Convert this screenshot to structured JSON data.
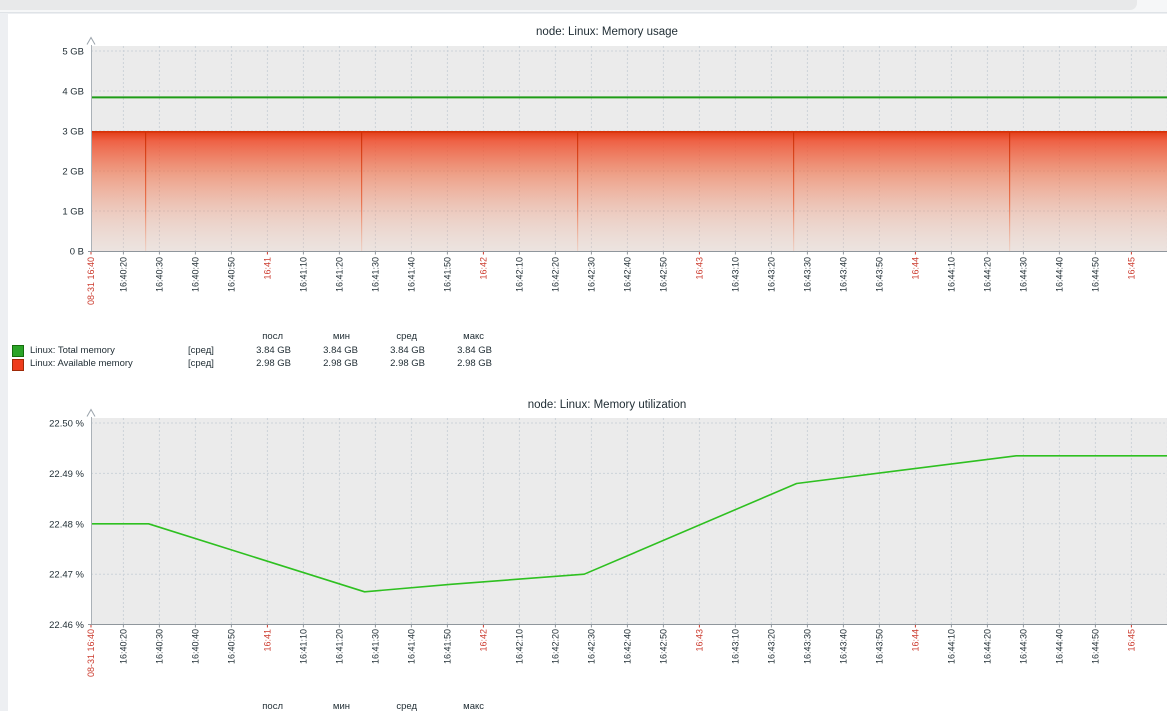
{
  "page": {
    "browser_chrome": {
      "strip_color": "#f6f7f8",
      "tab_color": "#e8e9ea",
      "divider_color": "#dfe3e7",
      "page_bg": "#edeff2",
      "panel_bg": "#ffffff",
      "plot_bg": "#ebebeb",
      "grid_color": "#ccd3d9",
      "axis_color": "#8f969c",
      "text_color": "#1f2c33",
      "time_highlight_color": "#cb3a2d"
    }
  },
  "x_ticks": [
    {
      "label": "08-31 16:40",
      "sec": 0,
      "red": true
    },
    {
      "label": "16:40:20",
      "sec": 9
    },
    {
      "label": "16:40:30",
      "sec": 19
    },
    {
      "label": "16:40:40",
      "sec": 29
    },
    {
      "label": "16:40:50",
      "sec": 39
    },
    {
      "label": "16:41",
      "sec": 49,
      "red": true
    },
    {
      "label": "16:41:10",
      "sec": 59
    },
    {
      "label": "16:41:20",
      "sec": 69
    },
    {
      "label": "16:41:30",
      "sec": 79
    },
    {
      "label": "16:41:40",
      "sec": 89
    },
    {
      "label": "16:41:50",
      "sec": 99
    },
    {
      "label": "16:42",
      "sec": 109,
      "red": true
    },
    {
      "label": "16:42:10",
      "sec": 119
    },
    {
      "label": "16:42:20",
      "sec": 129
    },
    {
      "label": "16:42:30",
      "sec": 139
    },
    {
      "label": "16:42:40",
      "sec": 149
    },
    {
      "label": "16:42:50",
      "sec": 159
    },
    {
      "label": "16:43",
      "sec": 169,
      "red": true
    },
    {
      "label": "16:43:10",
      "sec": 179
    },
    {
      "label": "16:43:20",
      "sec": 189
    },
    {
      "label": "16:43:30",
      "sec": 199
    },
    {
      "label": "16:43:40",
      "sec": 209
    },
    {
      "label": "16:43:50",
      "sec": 219
    },
    {
      "label": "16:44",
      "sec": 229,
      "red": true
    },
    {
      "label": "16:44:10",
      "sec": 239
    },
    {
      "label": "16:44:20",
      "sec": 249
    },
    {
      "label": "16:44:30",
      "sec": 259
    },
    {
      "label": "16:44:40",
      "sec": 269
    },
    {
      "label": "16:44:50",
      "sec": 279
    },
    {
      "label": "16:45",
      "sec": 289,
      "red": true
    }
  ],
  "chart_data": [
    {
      "type": "area+line",
      "title": "node: Linux: Memory usage",
      "date": "08-31",
      "time_range": [
        "16:40",
        "16:45"
      ],
      "y_axis": {
        "unit": "GB",
        "ylim": [
          0,
          5.125
        ],
        "ticks": [
          {
            "label": "5 GB",
            "v": 5
          },
          {
            "label": "4 GB",
            "v": 4
          },
          {
            "label": "3 GB",
            "v": 3
          },
          {
            "label": "2 GB",
            "v": 2
          },
          {
            "label": "1 GB",
            "v": 1
          },
          {
            "label": "0 B",
            "v": 0
          }
        ]
      },
      "series": [
        {
          "name": "Linux: Total memory",
          "color": "#1e9c17",
          "draw": "line",
          "constant": 3.84
        },
        {
          "name": "Linux: Available memory",
          "color": "#d63208",
          "draw": "gradient_area",
          "constant": 2.98,
          "area_seam_secs": [
            15,
            75,
            135,
            195,
            255
          ]
        }
      ],
      "legend": {
        "headers": [
          "посл",
          "мин",
          "сред",
          "макс"
        ],
        "rows": [
          {
            "swatch": "#2ba428",
            "swatch_border": "#156d0d",
            "label": "Linux: Total memory",
            "func": "[сред]",
            "values": [
              "3.84 GB",
              "3.84 GB",
              "3.84 GB",
              "3.84 GB"
            ]
          },
          {
            "swatch": "#ee3c1c",
            "swatch_border": "#9e2a08",
            "label": "Linux: Available memory",
            "func": "[сред]",
            "values": [
              "2.98 GB",
              "2.98 GB",
              "2.98 GB",
              "2.98 GB"
            ]
          }
        ]
      }
    },
    {
      "type": "line",
      "title": "node: Linux: Memory utilization",
      "date": "08-31",
      "time_range": [
        "16:40",
        "16:45"
      ],
      "y_axis": {
        "unit": "%",
        "ylim": [
          22.46,
          22.501
        ],
        "ticks": [
          {
            "label": "22.50 %",
            "v": 22.5
          },
          {
            "label": "22.49 %",
            "v": 22.49
          },
          {
            "label": "22.48 %",
            "v": 22.48
          },
          {
            "label": "22.47 %",
            "v": 22.47
          },
          {
            "label": "22.46 %",
            "v": 22.46
          }
        ]
      },
      "series": [
        {
          "name": "Linux: Memory utilization",
          "color": "#2ec020",
          "draw": "line",
          "points": [
            [
              0,
              22.48
            ],
            [
              16,
              22.48
            ],
            [
              76,
              22.4665
            ],
            [
              100,
              22.468
            ],
            [
              137,
              22.47
            ],
            [
              196,
              22.488
            ],
            [
              257,
              22.4935
            ],
            [
              299,
              22.4935
            ]
          ]
        }
      ],
      "legend": {
        "headers": [
          "посл",
          "мин",
          "сред",
          "макс"
        ],
        "rows": []
      }
    }
  ]
}
